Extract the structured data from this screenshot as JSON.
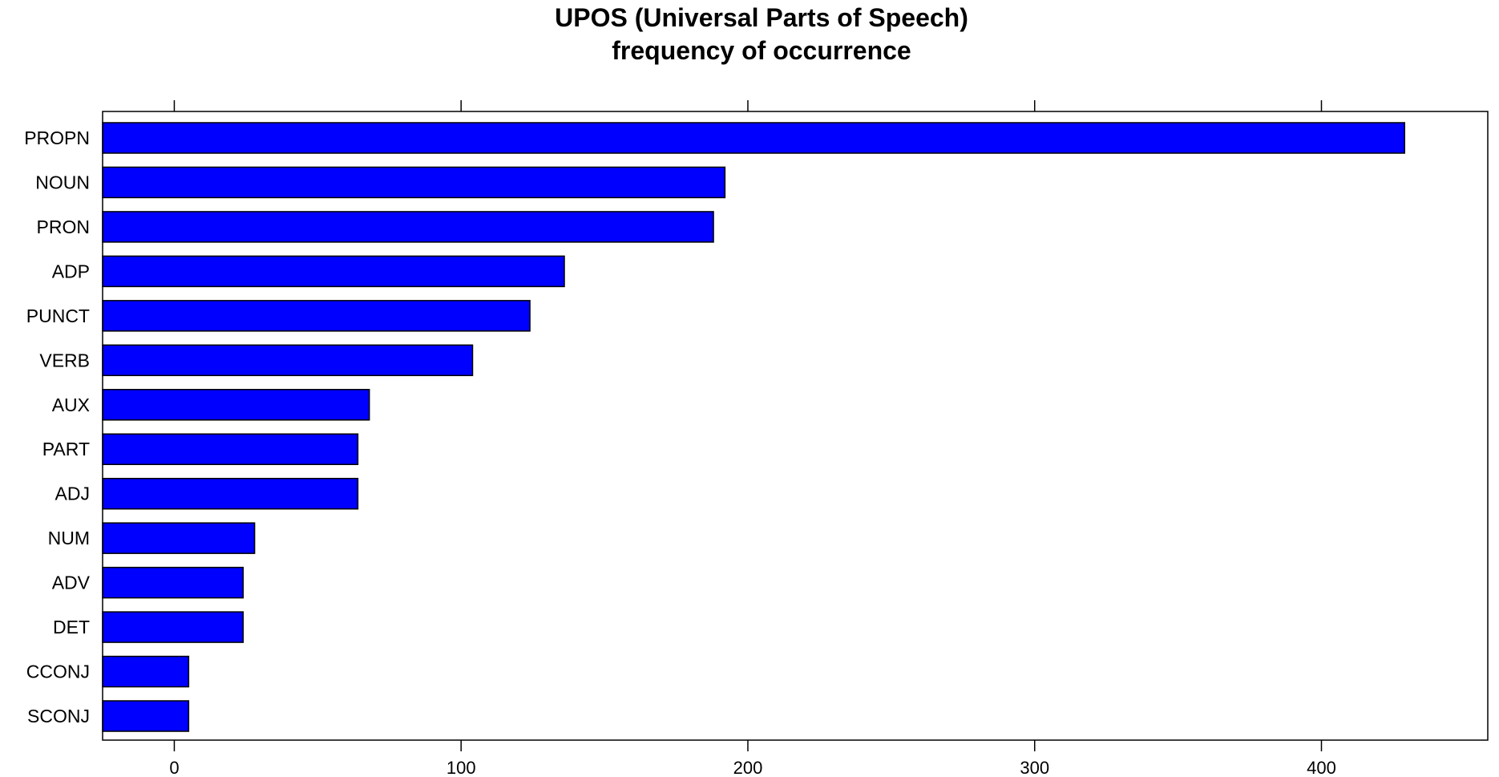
{
  "chart_data": {
    "type": "bar",
    "orientation": "horizontal",
    "title": "UPOS (Universal Parts of Speech)\nfrequency of occurrence",
    "title_lines": [
      "UPOS (Universal Parts of Speech)",
      "frequency of occurrence"
    ],
    "xlabel": "",
    "ylabel": "",
    "categories": [
      "PROPN",
      "NOUN",
      "PRON",
      "ADP",
      "PUNCT",
      "VERB",
      "AUX",
      "PART",
      "ADJ",
      "NUM",
      "ADV",
      "DET",
      "CCONJ",
      "SCONJ"
    ],
    "values": [
      429,
      192,
      188,
      136,
      124,
      104,
      68,
      64,
      64,
      28,
      24,
      24,
      5,
      5
    ],
    "xlim": [
      -25,
      458
    ],
    "x_ticks": [
      0,
      100,
      200,
      300,
      400
    ],
    "x_tick_labels": [
      "0",
      "100",
      "200",
      "300",
      "400"
    ],
    "x_ticks_top": true,
    "grid": false,
    "legend": "none",
    "bar_color": "#0000ff",
    "bar_edge_color": "#000000"
  }
}
